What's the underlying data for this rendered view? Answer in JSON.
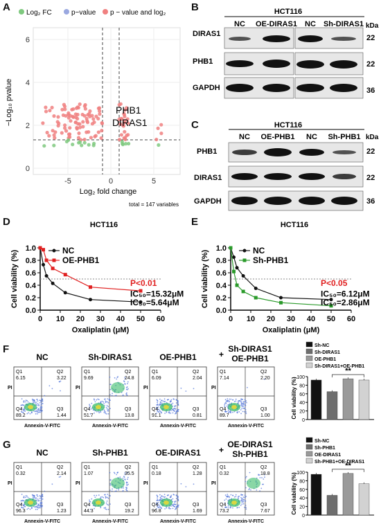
{
  "panels": {
    "A": "A",
    "B": "B",
    "C": "C",
    "D": "D",
    "E": "E",
    "F": "F",
    "G": "G"
  },
  "panel_a": {
    "legend": [
      "Log₂ FC",
      "p−value",
      "p − value and log₂"
    ],
    "ylabel": "−Log₁₀ pvalue",
    "xlabel": "Log₂ fold change",
    "xticks": [
      "-5",
      "0",
      "5"
    ],
    "yticks": [
      "0",
      "2",
      "4",
      "6"
    ],
    "genes": [
      "PHB1",
      "DIRAS1"
    ],
    "total": "total = 147 variables",
    "colors": {
      "fc": "#7fc97f",
      "p": "#9aa8e0",
      "both": "#f08080"
    }
  },
  "panel_b": {
    "title": "HCT116",
    "lanes": [
      "NC",
      "OE-DIRAS1",
      "NC",
      "Sh-DIRAS1"
    ],
    "proteins": [
      "DIRAS1",
      "PHB1",
      "GAPDH"
    ],
    "kda_header": "kDa",
    "kda": [
      "22",
      "22",
      "36"
    ]
  },
  "panel_c": {
    "title": "HCT116",
    "lanes": [
      "NC",
      "OE-PHB1",
      "NC",
      "Sh-PHB1"
    ],
    "proteins": [
      "PHB1",
      "DIRAS1",
      "GAPDH"
    ],
    "kda_header": "kDa",
    "kda": [
      "22",
      "22",
      "36"
    ]
  },
  "chart_data": [
    {
      "id": "D",
      "type": "line",
      "title": "HCT116",
      "xlabel": "Oxaliplatin (μM)",
      "ylabel": "Cell viability (%)",
      "xlim": [
        0,
        60
      ],
      "ylim": [
        0,
        1.0
      ],
      "xticks": [
        "0",
        "10",
        "20",
        "30",
        "40",
        "50",
        "60"
      ],
      "yticks": [
        "0.0",
        "0.2",
        "0.4",
        "0.6",
        "0.8",
        "1.0"
      ],
      "x": [
        0,
        1.56,
        3.125,
        6.25,
        12.5,
        25,
        50
      ],
      "series": [
        {
          "name": "NC",
          "color": "#111111",
          "values": [
            1.0,
            0.73,
            0.55,
            0.43,
            0.28,
            0.17,
            0.13
          ]
        },
        {
          "name": "OE-PHB1",
          "color": "#e02020",
          "values": [
            1.0,
            0.97,
            0.8,
            0.67,
            0.57,
            0.37,
            0.31
          ]
        }
      ],
      "annotations": {
        "p": "P<0.01",
        "ic1": "IC₅₀=15.32μM",
        "ic2": "IC₅₀=5.64μM"
      }
    },
    {
      "id": "E",
      "type": "line",
      "title": "HCT116",
      "xlabel": "Oxaliplatin (μM)",
      "ylabel": "Cell viability (%)",
      "xlim": [
        0,
        60
      ],
      "ylim": [
        0,
        1.0
      ],
      "xticks": [
        "0",
        "10",
        "20",
        "30",
        "40",
        "50",
        "60"
      ],
      "yticks": [
        "0.0",
        "0.2",
        "0.4",
        "0.6",
        "0.8",
        "1.0"
      ],
      "x": [
        0,
        1.56,
        3.125,
        6.25,
        12.5,
        25,
        50
      ],
      "series": [
        {
          "name": "NC",
          "color": "#111111",
          "values": [
            1.0,
            0.85,
            0.68,
            0.55,
            0.35,
            0.2,
            0.17
          ]
        },
        {
          "name": "Sh-PHB1",
          "color": "#2a9a2a",
          "values": [
            1.0,
            0.62,
            0.4,
            0.3,
            0.2,
            0.12,
            0.07
          ]
        }
      ],
      "annotations": {
        "p": "P<0.05",
        "ic1": "IC₅₀=6.12μM",
        "ic2": "IC₅₀=2.86μM"
      }
    },
    {
      "id": "F-bar",
      "type": "bar",
      "ylabel": "Cell viability (%)",
      "ylim": [
        0,
        100
      ],
      "yticks": [
        "0",
        "20",
        "40",
        "60",
        "80",
        "100"
      ],
      "categories": [
        "Sh-NC",
        "Sh-DIRAS1",
        "OE-PHB1",
        "Sh-DIRAS1+OE-PHB1"
      ],
      "values": [
        92,
        65,
        95,
        92
      ],
      "colors": [
        "#111111",
        "#6e6e6e",
        "#9a9a9a",
        "#d2d2d2"
      ],
      "sig": "**"
    },
    {
      "id": "G-bar",
      "type": "bar",
      "ylabel": "Cell viability (%)",
      "ylim": [
        0,
        100
      ],
      "yticks": [
        "0",
        "20",
        "40",
        "60",
        "80",
        "100"
      ],
      "categories": [
        "Sh-NC",
        "Sh-PHB1",
        "OE-DIRAS1",
        "Sh-PHB1+OE-DIRAS1"
      ],
      "values": [
        95,
        46,
        97,
        73
      ],
      "colors": [
        "#111111",
        "#6e6e6e",
        "#9a9a9a",
        "#d2d2d2"
      ],
      "sig": "**"
    }
  ],
  "flow_f": [
    {
      "title": "NC",
      "q1": "6.15",
      "q2": "3.22",
      "q3": "1.44",
      "q4": "89.2"
    },
    {
      "title": "Sh-DIRAS1",
      "q1": "9.69",
      "q2": "24.8",
      "q3": "13.8",
      "q4": "51.7"
    },
    {
      "title": "OE-PHB1",
      "q1": "6.09",
      "q2": "2.04",
      "q3": "0.81",
      "q4": "91.1"
    },
    {
      "title": "+",
      "title2": "Sh-DIRAS1",
      "title3": "OE-PHB1",
      "q1": "7.14",
      "q2": "2.20",
      "q3": "1.00",
      "q4": "89.7"
    }
  ],
  "flow_g": [
    {
      "title": "NC",
      "q1": "0.32",
      "q2": "2.14",
      "q3": "1.23",
      "q4": "96.3"
    },
    {
      "title": "Sh-PHB1",
      "q1": "1.07",
      "q2": "35.5",
      "q3": "19.2",
      "q4": "44.3"
    },
    {
      "title": "OE-DIRAS1",
      "q1": "0.18",
      "q2": "1.28",
      "q3": "1.69",
      "q4": "96.8"
    },
    {
      "title": "+",
      "title2": "OE-DIRAS1",
      "title3": "Sh-PHB1",
      "q1": "0.32",
      "q2": "18.8",
      "q3": "7.67",
      "q4": "73.2"
    }
  ],
  "flow_axes": {
    "x": "Annexin-V-FITC",
    "y": "PI",
    "qnames": [
      "Q1",
      "Q2",
      "Q3",
      "Q4"
    ]
  }
}
